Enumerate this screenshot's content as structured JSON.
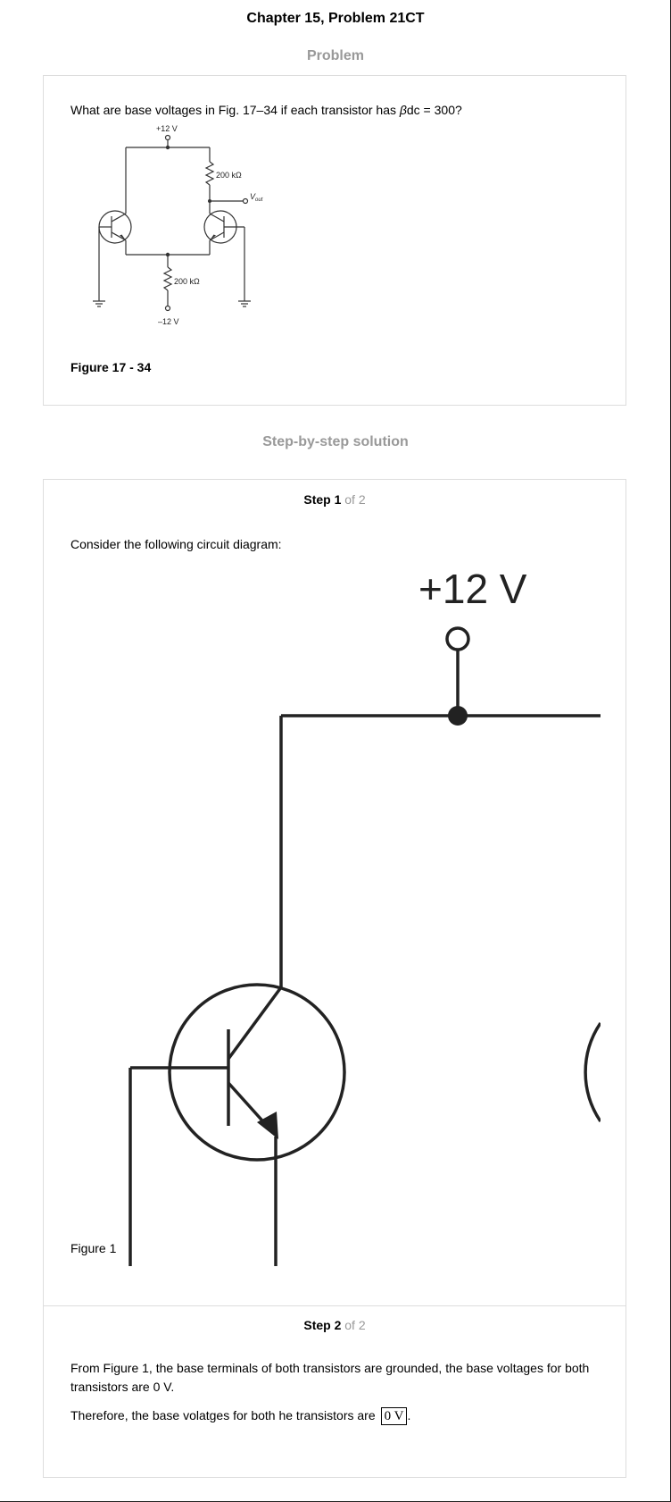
{
  "header": {
    "title": "Chapter 15, Problem 21CT"
  },
  "problem": {
    "heading": "Problem",
    "question_prefix": "What are base voltages in Fig. 17–34 if each transistor has ",
    "beta_symbol": "β",
    "question_suffix": "dc = 300?",
    "figure_caption": "Figure 17 - 34",
    "figure_labels": {
      "supply_pos": "+12 V",
      "resistor_top": "200 kΩ",
      "vout_v": "V",
      "vout_sub": "out",
      "resistor_bottom": "200 kΩ",
      "supply_neg": "–12 V"
    }
  },
  "solution": {
    "heading": "Step-by-step solution",
    "steps": [
      {
        "number": "Step 1",
        "of_text": "of 2",
        "text": "Consider the following circuit diagram:",
        "figure_label": "+12 V",
        "figure_caption": "Figure 1"
      },
      {
        "number": "Step 2",
        "of_text": "of 2",
        "paragraph1": "From Figure 1, the base terminals of both transistors are grounded, the base voltages for both transistors are 0 V.",
        "paragraph2": "Therefore, the base volatges for both he transistors are",
        "answer": "0 V",
        "end_punct": "."
      }
    ]
  }
}
